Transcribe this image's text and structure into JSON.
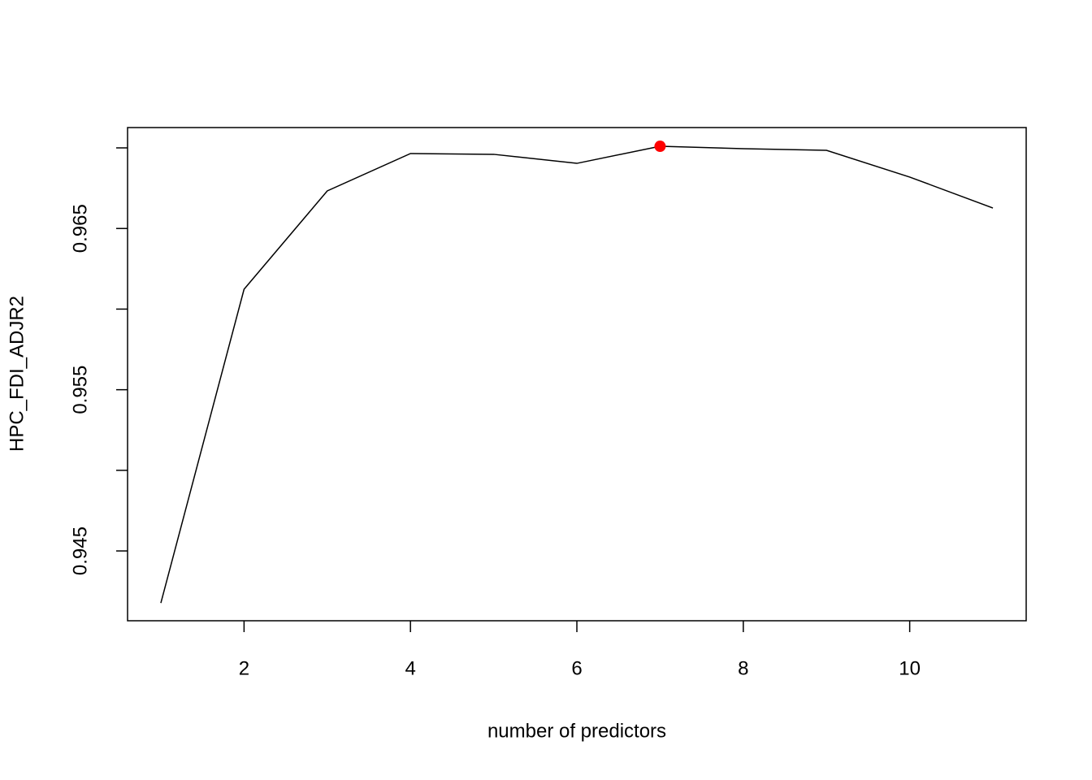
{
  "chart_data": {
    "type": "line",
    "xlabel": "number of predictors",
    "ylabel": "HPC_FDI_ADJR2",
    "x": [
      1,
      2,
      3,
      4,
      5,
      6,
      7,
      8,
      9,
      10,
      11
    ],
    "series": [
      {
        "color": "#000000",
        "values": [
          0.94177,
          0.96123,
          0.96733,
          0.96965,
          0.9696,
          0.96904,
          0.9701,
          0.96995,
          0.96985,
          0.96819,
          0.96627
        ]
      }
    ],
    "points": [
      {
        "x": 7,
        "y": 0.9701,
        "color": "#ff0000"
      }
    ],
    "xlim": [
      0.6,
      11.4
    ],
    "ylim": [
      0.94067,
      0.97126
    ],
    "xticks": [
      2,
      4,
      6,
      8,
      10
    ],
    "yticks": [
      0.945,
      {
        "value": 0.95,
        "label": null
      },
      0.955,
      {
        "value": 0.96,
        "label": null
      },
      0.965,
      {
        "value": 0.97,
        "label": null
      }
    ]
  }
}
